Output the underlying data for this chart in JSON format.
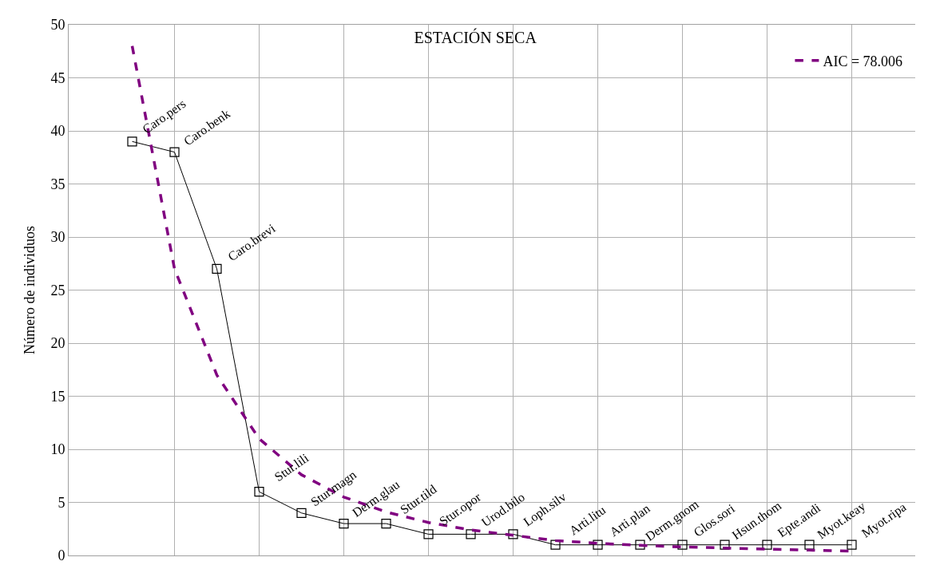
{
  "chart_data": {
    "type": "line",
    "title": "ESTACIÓN SECA",
    "ylabel": "Número de individuos",
    "categories": [
      null,
      null,
      null,
      null,
      null,
      null,
      null,
      null,
      null,
      null,
      null,
      null,
      null,
      null,
      null,
      null,
      null,
      null,
      null,
      null
    ],
    "ylim": [
      0,
      50
    ],
    "yticks": [
      0,
      5,
      10,
      15,
      20,
      25,
      30,
      35,
      40,
      45,
      50
    ],
    "tick_labels": "y",
    "grid": true,
    "legend": "top right",
    "series": [
      {
        "color": "#000000",
        "marker": "square",
        "line_style": "solid",
        "values": [
          null,
          39,
          38,
          27,
          6,
          4,
          3,
          3,
          2,
          2,
          2,
          1,
          1,
          1,
          1,
          1,
          1,
          1,
          1,
          null
        ]
      },
      {
        "name": "AIC = 78.006",
        "color": "#800080",
        "marker": "none",
        "line_style": "dashed",
        "values": [
          null,
          48,
          27,
          17,
          11,
          7.6,
          5.5,
          4.1,
          3.1,
          2.4,
          1.9,
          1.4,
          1.15,
          0.95,
          0.8,
          0.7,
          0.6,
          0.5,
          0.4,
          null
        ]
      }
    ],
    "annotations": [
      "Caro.pers",
      "Caro.benk",
      "Caro.brevi",
      "Stur.lili",
      "Stur.magn",
      "Derm.glau",
      "Stur.tild",
      "Stur.opor",
      "Urod.bilo",
      "Loph.silv",
      "Arti.litu",
      "Arti.plan",
      "Derm.gnom",
      "Glos.sori",
      "Hsun.thom",
      "Epte.andi",
      "Myot.keay",
      "Myot.ripa"
    ]
  }
}
